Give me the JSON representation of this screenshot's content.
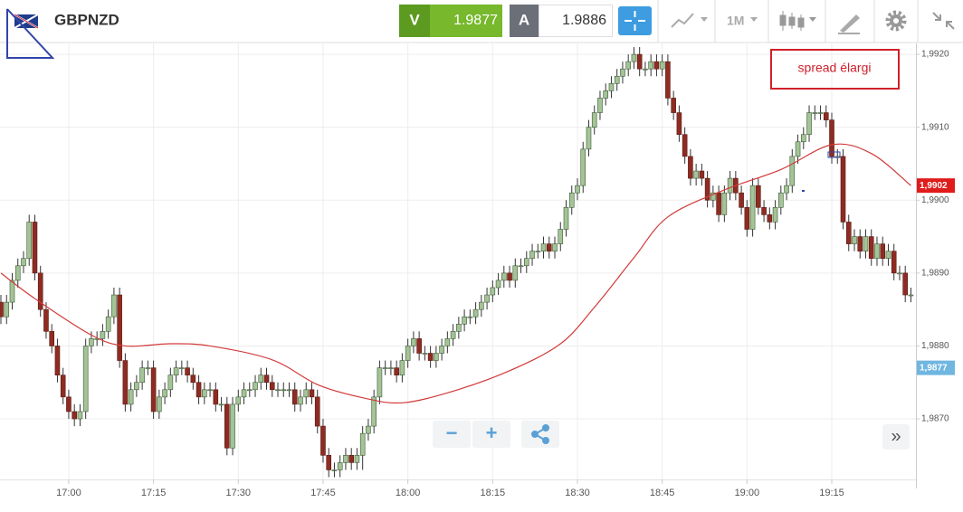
{
  "header": {
    "symbol": "GBPNZD",
    "sell_label": "V",
    "sell_price": "1.9877",
    "buy_label": "A",
    "buy_price": "1.9886",
    "timeframe": "1M"
  },
  "annotation": "spread élargi",
  "controls": {
    "zoom_out": "−",
    "zoom_in": "+",
    "scroll": "»"
  },
  "chart_data": {
    "type": "candlestick",
    "x": [
      "16:48",
      "16:49",
      "16:50",
      "16:51",
      "16:52",
      "16:53",
      "16:54",
      "16:55",
      "16:56",
      "16:57",
      "16:58",
      "16:59",
      "17:00",
      "17:01",
      "17:02",
      "17:03",
      "17:04",
      "17:05",
      "17:06",
      "17:07",
      "17:08",
      "17:09",
      "17:10",
      "17:11",
      "17:12",
      "17:13",
      "17:14",
      "17:15",
      "17:16",
      "17:17",
      "17:18",
      "17:19",
      "17:20",
      "17:21",
      "17:22",
      "17:23",
      "17:24",
      "17:25",
      "17:26",
      "17:27",
      "17:28",
      "17:29",
      "17:30",
      "17:31",
      "17:32",
      "17:33",
      "17:34",
      "17:35",
      "17:36",
      "17:37",
      "17:38",
      "17:39",
      "17:40",
      "17:41",
      "17:42",
      "17:43",
      "17:44",
      "17:45",
      "17:46",
      "17:47",
      "17:48",
      "17:49",
      "17:50",
      "17:51",
      "17:52",
      "17:53",
      "17:54",
      "17:55",
      "17:56",
      "17:57",
      "17:58",
      "17:59",
      "18:00",
      "18:01",
      "18:02",
      "18:03",
      "18:04",
      "18:05",
      "18:06",
      "18:07",
      "18:08",
      "18:09",
      "18:10",
      "18:11",
      "18:12",
      "18:13",
      "18:14",
      "18:15",
      "18:16",
      "18:17",
      "18:18",
      "18:19",
      "18:20",
      "18:21",
      "18:22",
      "18:23",
      "18:24",
      "18:25",
      "18:26",
      "18:27",
      "18:28",
      "18:29",
      "18:30",
      "18:31",
      "18:32",
      "18:33",
      "18:34",
      "18:35",
      "18:36",
      "18:37",
      "18:38",
      "18:39",
      "18:40",
      "18:41",
      "18:42",
      "18:43",
      "18:44",
      "18:45",
      "18:46",
      "18:47",
      "18:48",
      "18:49",
      "18:50",
      "18:51",
      "18:52",
      "18:53",
      "18:54",
      "18:55",
      "18:56",
      "18:57",
      "18:58",
      "18:59",
      "19:00",
      "19:01",
      "19:02",
      "19:03",
      "19:04",
      "19:05",
      "19:06",
      "19:07",
      "19:08",
      "19:09",
      "19:10",
      "19:11",
      "19:12",
      "19:13",
      "19:14",
      "19:15",
      "19:16",
      "19:17",
      "19:18",
      "19:19",
      "19:20",
      "19:21",
      "19:22",
      "19:23",
      "19:24",
      "19:25",
      "19:26",
      "19:27",
      "19:28",
      "19:29"
    ],
    "open": [
      1.9886,
      1.9884,
      1.9886,
      1.9889,
      1.9891,
      1.9892,
      1.9897,
      1.989,
      1.9885,
      1.9882,
      1.988,
      1.9876,
      1.9873,
      1.9871,
      1.987,
      1.9871,
      1.988,
      1.9881,
      1.9881,
      1.9882,
      1.9884,
      1.9887,
      1.9878,
      1.9872,
      1.9874,
      1.9875,
      1.9877,
      1.9877,
      1.9871,
      1.9873,
      1.9874,
      1.9876,
      1.9877,
      1.9877,
      1.9876,
      1.9875,
      1.9873,
      1.9874,
      1.9874,
      1.9872,
      1.9872,
      1.9866,
      1.9872,
      1.9873,
      1.9874,
      1.9874,
      1.9875,
      1.9876,
      1.9875,
      1.9874,
      1.9874,
      1.9874,
      1.9874,
      1.9872,
      1.9873,
      1.9874,
      1.9873,
      1.9869,
      1.9865,
      1.9863,
      1.9863,
      1.9864,
      1.9865,
      1.9864,
      1.9865,
      1.9868,
      1.9869,
      1.9873,
      1.9877,
      1.9877,
      1.9877,
      1.9876,
      1.9878,
      1.988,
      1.9881,
      1.9879,
      1.9879,
      1.9878,
      1.9879,
      1.988,
      1.9881,
      1.9882,
      1.9883,
      1.9884,
      1.9884,
      1.9885,
      1.9886,
      1.9887,
      1.9888,
      1.9889,
      1.989,
      1.9889,
      1.9891,
      1.9891,
      1.9892,
      1.9893,
      1.9893,
      1.9894,
      1.9893,
      1.9894,
      1.9896,
      1.9899,
      1.9901,
      1.9902,
      1.9907,
      1.991,
      1.9912,
      1.9914,
      1.9915,
      1.9916,
      1.9917,
      1.9918,
      1.9919,
      1.992,
      1.9918,
      1.9918,
      1.9919,
      1.9918,
      1.9919,
      1.9914,
      1.9912,
      1.9909,
      1.9906,
      1.9903,
      1.9904,
      1.9903,
      1.99,
      1.9901,
      1.9898,
      1.9901,
      1.9903,
      1.9901,
      1.9899,
      1.9896,
      1.9902,
      1.9899,
      1.9898,
      1.9897,
      1.9899,
      1.9901,
      1.9902,
      1.9906,
      1.9908,
      1.9909,
      1.9912,
      1.9912,
      1.9912,
      1.9911,
      1.9906,
      1.9906,
      1.9897,
      1.9894,
      1.9895,
      1.9893,
      1.9895,
      1.9892,
      1.9894,
      1.9892,
      1.9893,
      1.989,
      1.989,
      1.9887
    ],
    "high": [
      1.9887,
      1.9887,
      1.989,
      1.9892,
      1.9893,
      1.9898,
      1.9898,
      1.9891,
      1.9886,
      1.9883,
      1.9881,
      1.9877,
      1.9874,
      1.9872,
      1.9872,
      1.9881,
      1.9882,
      1.9882,
      1.9883,
      1.9885,
      1.9888,
      1.9888,
      1.9879,
      1.9875,
      1.9876,
      1.9878,
      1.9878,
      1.9878,
      1.9874,
      1.9875,
      1.9877,
      1.9878,
      1.9878,
      1.9878,
      1.9877,
      1.9876,
      1.9875,
      1.9875,
      1.9875,
      1.9873,
      1.9873,
      1.9873,
      1.9874,
      1.9875,
      1.9875,
      1.9876,
      1.9877,
      1.9877,
      1.9876,
      1.9875,
      1.9875,
      1.9875,
      1.9875,
      1.9874,
      1.9875,
      1.9875,
      1.9874,
      1.987,
      1.9866,
      1.9864,
      1.9865,
      1.9866,
      1.9866,
      1.9866,
      1.9869,
      1.987,
      1.9874,
      1.9878,
      1.9878,
      1.9878,
      1.9878,
      1.9879,
      1.9881,
      1.9882,
      1.9882,
      1.988,
      1.988,
      1.988,
      1.9881,
      1.9882,
      1.9883,
      1.9884,
      1.9885,
      1.9885,
      1.9886,
      1.9887,
      1.9888,
      1.9889,
      1.989,
      1.9891,
      1.9891,
      1.9892,
      1.9892,
      1.9893,
      1.9894,
      1.9894,
      1.9895,
      1.9895,
      1.9895,
      1.9897,
      1.99,
      1.9902,
      1.9903,
      1.9908,
      1.9911,
      1.9913,
      1.9915,
      1.9916,
      1.9917,
      1.9918,
      1.9919,
      1.992,
      1.9921,
      1.9921,
      1.9919,
      1.992,
      1.992,
      1.992,
      1.992,
      1.9915,
      1.9913,
      1.991,
      1.9907,
      1.9905,
      1.9905,
      1.9904,
      1.9902,
      1.9902,
      1.9902,
      1.9904,
      1.9904,
      1.9902,
      1.99,
      1.9903,
      1.9903,
      1.99,
      1.9899,
      1.99,
      1.9902,
      1.9903,
      1.9907,
      1.9909,
      1.991,
      1.9913,
      1.9913,
      1.9913,
      1.9913,
      1.9912,
      1.9907,
      1.9907,
      1.9898,
      1.9896,
      1.9896,
      1.9896,
      1.9896,
      1.9895,
      1.9895,
      1.9894,
      1.9894,
      1.9891,
      1.9891,
      1.9888
    ],
    "low": [
      1.9883,
      1.9883,
      1.9885,
      1.9888,
      1.989,
      1.9891,
      1.9889,
      1.9884,
      1.9881,
      1.9879,
      1.9875,
      1.9872,
      1.987,
      1.9869,
      1.9869,
      1.987,
      1.9879,
      1.988,
      1.988,
      1.9881,
      1.9883,
      1.9877,
      1.9871,
      1.9871,
      1.9873,
      1.9874,
      1.9876,
      1.987,
      1.987,
      1.9872,
      1.9873,
      1.9875,
      1.9876,
      1.9875,
      1.9874,
      1.9872,
      1.9872,
      1.9873,
      1.9871,
      1.9871,
      1.9865,
      1.9865,
      1.9871,
      1.9872,
      1.9873,
      1.9873,
      1.9874,
      1.9874,
      1.9873,
      1.9873,
      1.9873,
      1.9873,
      1.9871,
      1.9871,
      1.9872,
      1.9872,
      1.9868,
      1.9864,
      1.9862,
      1.9862,
      1.9862,
      1.9863,
      1.9863,
      1.9863,
      1.9863,
      1.9867,
      1.9868,
      1.9872,
      1.9876,
      1.9876,
      1.9875,
      1.9875,
      1.9877,
      1.9879,
      1.9878,
      1.9878,
      1.9877,
      1.9877,
      1.9878,
      1.9879,
      1.988,
      1.9881,
      1.9882,
      1.9883,
      1.9883,
      1.9884,
      1.9885,
      1.9886,
      1.9887,
      1.9888,
      1.9888,
      1.9888,
      1.989,
      1.989,
      1.9891,
      1.9892,
      1.9892,
      1.9892,
      1.9892,
      1.9893,
      1.9895,
      1.9898,
      1.99,
      1.9901,
      1.9906,
      1.9909,
      1.9911,
      1.9913,
      1.9914,
      1.9915,
      1.9916,
      1.9917,
      1.9918,
      1.9917,
      1.9917,
      1.9917,
      1.9917,
      1.9917,
      1.9913,
      1.9911,
      1.9908,
      1.9905,
      1.9902,
      1.9902,
      1.9902,
      1.9899,
      1.9899,
      1.9897,
      1.9897,
      1.99,
      1.99,
      1.9898,
      1.9895,
      1.9895,
      1.9898,
      1.9897,
      1.9896,
      1.9896,
      1.9898,
      1.99,
      1.9901,
      1.9905,
      1.9907,
      1.9908,
      1.9911,
      1.9911,
      1.991,
      1.9905,
      1.9905,
      1.9896,
      1.9893,
      1.9893,
      1.9892,
      1.9892,
      1.9891,
      1.9891,
      1.9891,
      1.9891,
      1.9889,
      1.9889,
      1.9886,
      1.9886
    ],
    "close": [
      1.9884,
      1.9886,
      1.9889,
      1.9891,
      1.9892,
      1.9897,
      1.989,
      1.9885,
      1.9882,
      1.988,
      1.9876,
      1.9873,
      1.9871,
      1.987,
      1.9871,
      1.988,
      1.9881,
      1.9881,
      1.9882,
      1.9884,
      1.9887,
      1.9878,
      1.9872,
      1.9874,
      1.9875,
      1.9877,
      1.9877,
      1.9871,
      1.9873,
      1.9874,
      1.9876,
      1.9877,
      1.9877,
      1.9876,
      1.9875,
      1.9873,
      1.9874,
      1.9874,
      1.9872,
      1.9872,
      1.9866,
      1.9872,
      1.9873,
      1.9874,
      1.9874,
      1.9875,
      1.9876,
      1.9875,
      1.9874,
      1.9874,
      1.9874,
      1.9874,
      1.9872,
      1.9873,
      1.9874,
      1.9873,
      1.9869,
      1.9865,
      1.9863,
      1.9863,
      1.9864,
      1.9865,
      1.9864,
      1.9865,
      1.9868,
      1.9869,
      1.9873,
      1.9877,
      1.9877,
      1.9877,
      1.9876,
      1.9878,
      1.988,
      1.9881,
      1.9879,
      1.9879,
      1.9878,
      1.9879,
      1.988,
      1.9881,
      1.9882,
      1.9883,
      1.9884,
      1.9884,
      1.9885,
      1.9886,
      1.9887,
      1.9888,
      1.9889,
      1.989,
      1.9889,
      1.9891,
      1.9891,
      1.9892,
      1.9893,
      1.9893,
      1.9894,
      1.9893,
      1.9894,
      1.9896,
      1.9899,
      1.9901,
      1.9902,
      1.9907,
      1.991,
      1.9912,
      1.9914,
      1.9915,
      1.9916,
      1.9917,
      1.9918,
      1.9919,
      1.992,
      1.9918,
      1.9918,
      1.9919,
      1.9918,
      1.9919,
      1.9914,
      1.9912,
      1.9909,
      1.9906,
      1.9903,
      1.9904,
      1.9903,
      1.99,
      1.9901,
      1.9898,
      1.9901,
      1.9903,
      1.9901,
      1.9899,
      1.9896,
      1.9902,
      1.9899,
      1.9898,
      1.9897,
      1.9899,
      1.9901,
      1.9902,
      1.9906,
      1.9908,
      1.9909,
      1.9912,
      1.9912,
      1.9912,
      1.9911,
      1.9906,
      1.9906,
      1.9897,
      1.9894,
      1.9895,
      1.9893,
      1.9895,
      1.9892,
      1.9894,
      1.9892,
      1.9893,
      1.989,
      1.989,
      1.9887,
      1.9887
    ],
    "up_color": "#a4c396",
    "down_color": "#8e2c22",
    "moving_average": {
      "color": "#d23a3a",
      "x": [
        "16:48",
        "16:54",
        "17:04",
        "17:10",
        "17:18",
        "17:25",
        "17:36",
        "17:44",
        "17:52",
        "17:59",
        "18:08",
        "18:18",
        "18:27",
        "18:33",
        "18:40",
        "18:46",
        "18:56",
        "19:06",
        "19:15",
        "19:22",
        "19:29"
      ],
      "values": [
        1.989,
        1.98865,
        1.98815,
        1.988,
        1.98803,
        1.988,
        1.98781,
        1.98747,
        1.98729,
        1.98722,
        1.98738,
        1.98766,
        1.98803,
        1.98853,
        1.98921,
        1.98977,
        1.99014,
        1.99042,
        1.99076,
        1.99064,
        1.9902
      ]
    },
    "ylim": [
      1.9862,
      1.99215
    ],
    "yticks": [
      {
        "value": 1.987,
        "label": "1,9870"
      },
      {
        "value": 1.988,
        "label": "1,9880"
      },
      {
        "value": 1.989,
        "label": "1,9890"
      },
      {
        "value": 1.99,
        "label": "1,9900"
      },
      {
        "value": 1.991,
        "label": "1,9910"
      },
      {
        "value": 1.992,
        "label": "1,9920"
      }
    ],
    "xticks": [
      "17:00",
      "17:15",
      "17:30",
      "17:45",
      "18:00",
      "18:15",
      "18:30",
      "18:45",
      "19:00",
      "19:15"
    ],
    "grid": true,
    "price_tags": [
      {
        "value": 1.9902,
        "label": "1,9902",
        "color": "#e01b1b"
      },
      {
        "value": 1.9877,
        "label": "1,9877",
        "color": "#6fb6e0"
      }
    ]
  }
}
